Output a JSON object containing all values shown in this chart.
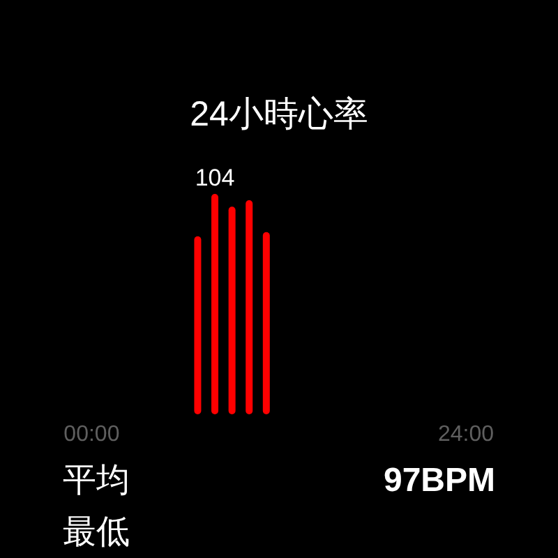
{
  "chart_data": {
    "type": "bar",
    "title": "24小時心率",
    "x": [
      6.8,
      7.9,
      9.0,
      10.1,
      11.2
    ],
    "values": [
      84,
      104,
      98,
      101,
      86
    ],
    "color": "#ff0000",
    "value_labels": [
      null,
      "104",
      null,
      null,
      null
    ],
    "xlim": [
      0,
      24
    ],
    "xticks": [
      {
        "value": 0,
        "label": "00:00"
      },
      {
        "value": 24,
        "label": "24:00"
      }
    ],
    "ylim": [
      0,
      104
    ],
    "tick_labels": "x",
    "annotations": [
      "平均",
      "97BPM",
      "最低"
    ]
  }
}
